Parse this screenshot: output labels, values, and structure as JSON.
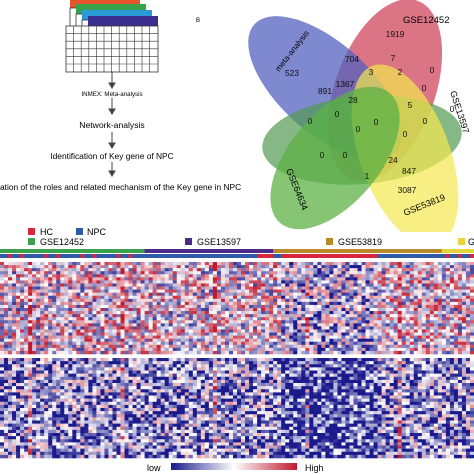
{
  "flowchart": {
    "steps": [
      "INMEX: Meta-analysis",
      "Network-analysis",
      "Identification of Key gene of NPC",
      "ation of the roles and related mechanism of the Key gene in NPC"
    ],
    "table_colors": [
      "#e8542c",
      "#3aa24a",
      "#2a9bd6",
      "#3a2f8f"
    ]
  },
  "venn": {
    "panel_label": "B",
    "sets": [
      {
        "name": "meta-analysis",
        "color": "#3f4fb8"
      },
      {
        "name": "GSE12452",
        "color": "#c9314a"
      },
      {
        "name": "GSE13597",
        "color": "#3e8f3e"
      },
      {
        "name": "GSE53819",
        "color": "#f2e53a"
      },
      {
        "name": "GSE64634",
        "color": "#4aa830"
      }
    ],
    "counts": [
      "1919",
      "523",
      "704",
      "7",
      "0",
      "3",
      "2",
      "891",
      "1367",
      "0",
      "28",
      "0",
      "5",
      "0",
      "0",
      "0",
      "0",
      "0",
      "0",
      "0",
      "0",
      "24",
      "847",
      "1",
      "3087"
    ]
  },
  "legend": {
    "groups": [
      {
        "label": "HC",
        "color": "#d7263d"
      },
      {
        "label": "NPC",
        "color": "#2e5aa8"
      }
    ],
    "datasets": [
      {
        "label": "GSE12452",
        "color": "#3aa24a"
      },
      {
        "label": "GSE13597",
        "color": "#4b2a8c"
      },
      {
        "label": "GSE53819",
        "color": "#b88a2a"
      },
      {
        "label": "G",
        "color": "#e6d43a"
      }
    ]
  },
  "heatmap": {
    "low_label": "low",
    "high_label": "High",
    "low_color": "#1a1a8c",
    "mid_color": "#ffffff",
    "high_color": "#c0182d"
  }
}
